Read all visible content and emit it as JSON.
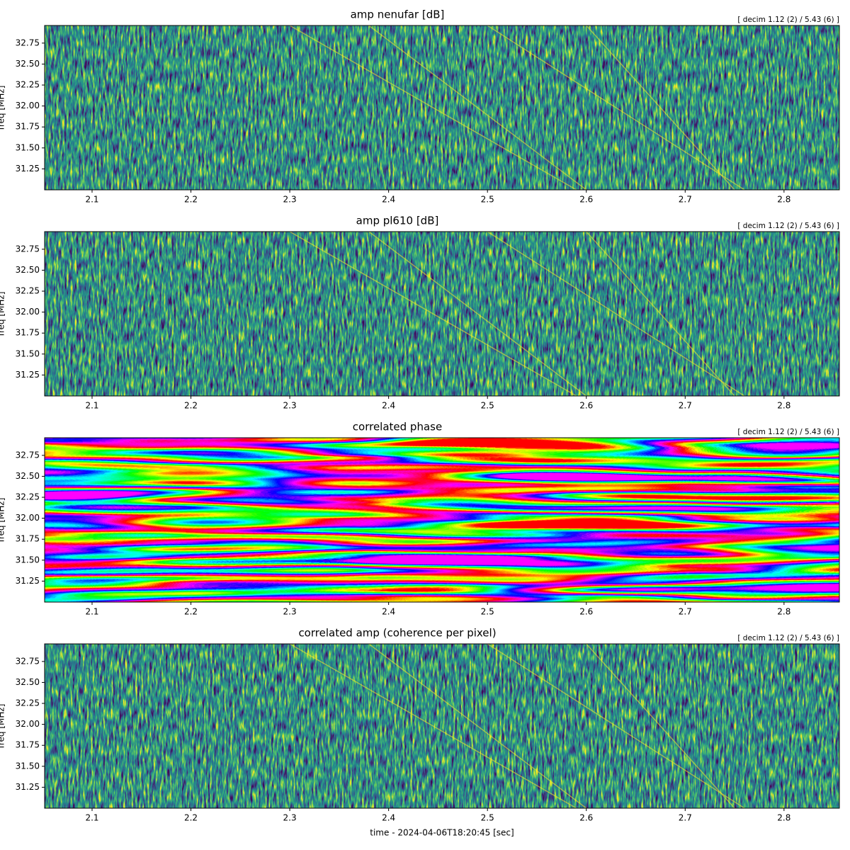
{
  "chart_data": [
    {
      "type": "heatmap",
      "title": "amp nenufar [dB]",
      "annotation": "[ decim 1.12 (2) / 5.43 (6) ]",
      "ylabel": "freq [MHz]",
      "colormap": "viridis",
      "xlim": [
        2.052,
        2.856
      ],
      "ylim": [
        31.0,
        32.96
      ],
      "xticks": [
        2.1,
        2.2,
        2.3,
        2.4,
        2.5,
        2.6,
        2.7,
        2.8
      ],
      "yticks": [
        31.25,
        {
          "value": 31.5,
          "label": "31.50"
        },
        31.75,
        {
          "value": 32,
          "label": "32.00"
        },
        32.25,
        {
          "value": 32.5,
          "label": "32.50"
        },
        32.75
      ]
    },
    {
      "type": "heatmap",
      "title": "amp pl610 [dB]",
      "annotation": "[ decim 1.12 (2) / 5.43 (6) ]",
      "ylabel": "freq [MHz]",
      "colormap": "viridis",
      "xlim": [
        2.052,
        2.856
      ],
      "ylim": [
        31.0,
        32.96
      ],
      "xticks": [
        2.1,
        2.2,
        2.3,
        2.4,
        2.5,
        2.6,
        2.7,
        2.8
      ],
      "yticks": [
        31.25,
        {
          "value": 31.5,
          "label": "31.50"
        },
        31.75,
        {
          "value": 32,
          "label": "32.00"
        },
        32.25,
        {
          "value": 32.5,
          "label": "32.50"
        },
        32.75
      ]
    },
    {
      "type": "heatmap",
      "title": "correlated phase",
      "annotation": "[ decim 1.12 (2) / 5.43 (6) ]",
      "ylabel": "freq [MHz]",
      "colormap": "hsv",
      "xlim": [
        2.052,
        2.856
      ],
      "ylim": [
        31.0,
        32.96
      ],
      "xticks": [
        2.1,
        2.2,
        2.3,
        2.4,
        2.5,
        2.6,
        2.7,
        2.8
      ],
      "yticks": [
        31.25,
        {
          "value": 31.5,
          "label": "31.50"
        },
        31.75,
        {
          "value": 32,
          "label": "32.00"
        },
        32.25,
        {
          "value": 32.5,
          "label": "32.50"
        },
        32.75
      ]
    },
    {
      "type": "heatmap",
      "title": "correlated amp (coherence per pixel)",
      "annotation": "[ decim 1.12 (2) / 5.43 (6) ]",
      "ylabel": "freq [MHz]",
      "xlabel": "time - 2024-04-06T18:20:45 [sec]",
      "colormap": "viridis",
      "xlim": [
        2.052,
        2.856
      ],
      "ylim": [
        31.0,
        32.96
      ],
      "xticks": [
        2.1,
        2.2,
        2.3,
        2.4,
        2.5,
        2.6,
        2.7,
        2.8
      ],
      "yticks": [
        31.25,
        {
          "value": 31.5,
          "label": "31.50"
        },
        31.75,
        {
          "value": 32,
          "label": "32.00"
        },
        32.25,
        {
          "value": 32.5,
          "label": "32.50"
        },
        32.75
      ]
    }
  ]
}
